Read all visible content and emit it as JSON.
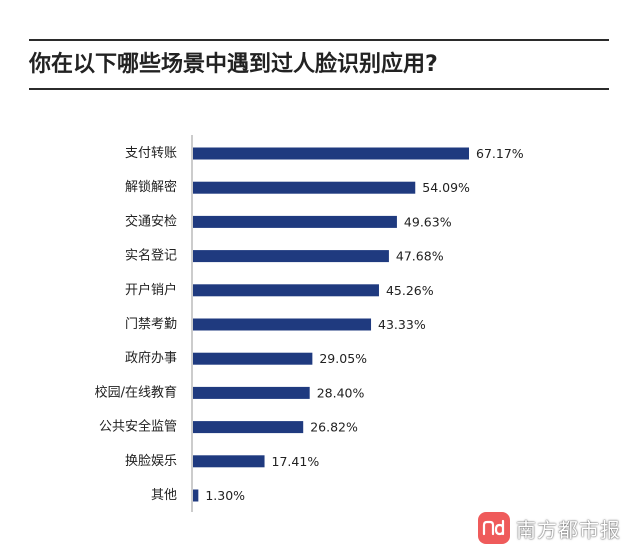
{
  "chart_data": {
    "type": "bar",
    "orientation": "horizontal",
    "title": "你在以下哪些场景中遇到过人脸识别应用?",
    "categories": [
      "支付转账",
      "解锁解密",
      "交通安检",
      "实名登记",
      "开户销户",
      "门禁考勤",
      "政府办事",
      "校园/在线教育",
      "公共安全监管",
      "换脸娱乐",
      "其他"
    ],
    "values": [
      67.17,
      54.09,
      49.63,
      47.68,
      45.26,
      43.33,
      29.05,
      28.4,
      26.82,
      17.41,
      1.3
    ],
    "value_labels": [
      "67.17%",
      "54.09%",
      "49.63%",
      "47.68%",
      "45.26%",
      "43.33%",
      "29.05%",
      "28.40%",
      "26.82%",
      "17.41%",
      "1.30%"
    ],
    "xlim": [
      0,
      67.17
    ],
    "grid": false,
    "bar_color": "#1f3a7f"
  },
  "watermark": {
    "text": "南方都市报",
    "logo_icon": "nd-logo-icon",
    "logo_color": "#ef5b5b"
  },
  "colors": {
    "rule": "#2b2b2b",
    "axis": "#999999",
    "text": "#222222"
  }
}
